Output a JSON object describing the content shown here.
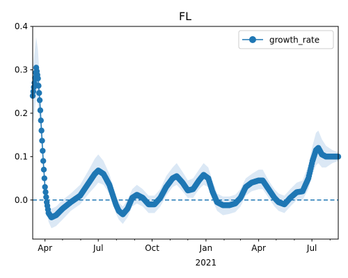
{
  "chart_data": {
    "type": "line",
    "title": "FL",
    "xlabel": "",
    "ylabel": "",
    "x_range": [
      "2020-03-11",
      "2021-08-15"
    ],
    "ylim": [
      -0.09,
      0.4
    ],
    "y_ticks": [
      0.0,
      0.1,
      0.2,
      0.3,
      0.4
    ],
    "y_tick_labels": [
      "0.0",
      "0.1",
      "0.2",
      "0.3",
      "0.4"
    ],
    "x_ticks": [
      {
        "date": "2020-04-01",
        "label": "Apr",
        "sublabel": ""
      },
      {
        "date": "2020-07-01",
        "label": "Jul",
        "sublabel": ""
      },
      {
        "date": "2020-10-01",
        "label": "Oct",
        "sublabel": ""
      },
      {
        "date": "2021-01-01",
        "label": "Jan",
        "sublabel": "2021"
      },
      {
        "date": "2021-04-01",
        "label": "Apr",
        "sublabel": ""
      },
      {
        "date": "2021-07-01",
        "label": "Jul",
        "sublabel": ""
      }
    ],
    "reference_line": {
      "y": 0.0,
      "style": "dashed",
      "color": "#1f77b4"
    },
    "legend": {
      "position": "top-right",
      "entries": [
        "growth_rate"
      ]
    },
    "grid": false,
    "series": [
      {
        "name": "growth_rate",
        "color": "#1f77b4",
        "band_color": "#dbe8f5",
        "marker": "circle",
        "points": [
          {
            "x": "2020-03-11",
            "y": 0.24,
            "lo": 0.17,
            "hi": 0.3
          },
          {
            "x": "2020-03-14",
            "y": 0.27,
            "lo": 0.2,
            "hi": 0.34
          },
          {
            "x": "2020-03-17",
            "y": 0.305,
            "lo": 0.24,
            "hi": 0.375
          },
          {
            "x": "2020-03-20",
            "y": 0.28,
            "lo": 0.22,
            "hi": 0.345
          },
          {
            "x": "2020-03-23",
            "y": 0.23,
            "lo": 0.18,
            "hi": 0.28
          },
          {
            "x": "2020-03-26",
            "y": 0.16,
            "lo": 0.125,
            "hi": 0.195
          },
          {
            "x": "2020-03-29",
            "y": 0.09,
            "lo": 0.07,
            "hi": 0.11
          },
          {
            "x": "2020-04-01",
            "y": 0.03,
            "lo": 0.015,
            "hi": 0.045
          },
          {
            "x": "2020-04-04",
            "y": -0.005,
            "lo": -0.02,
            "hi": 0.01
          },
          {
            "x": "2020-04-07",
            "y": -0.03,
            "lo": -0.05,
            "hi": -0.015
          },
          {
            "x": "2020-04-12",
            "y": -0.04,
            "lo": -0.065,
            "hi": -0.02
          },
          {
            "x": "2020-04-20",
            "y": -0.035,
            "lo": -0.06,
            "hi": -0.015
          },
          {
            "x": "2020-05-01",
            "y": -0.02,
            "lo": -0.045,
            "hi": 0.0
          },
          {
            "x": "2020-05-15",
            "y": -0.005,
            "lo": -0.025,
            "hi": 0.015
          },
          {
            "x": "2020-05-31",
            "y": 0.01,
            "lo": -0.01,
            "hi": 0.035
          },
          {
            "x": "2020-06-15",
            "y": 0.04,
            "lo": 0.015,
            "hi": 0.07
          },
          {
            "x": "2020-06-25",
            "y": 0.06,
            "lo": 0.03,
            "hi": 0.095
          },
          {
            "x": "2020-07-01",
            "y": 0.068,
            "lo": 0.04,
            "hi": 0.105
          },
          {
            "x": "2020-07-10",
            "y": 0.06,
            "lo": 0.035,
            "hi": 0.09
          },
          {
            "x": "2020-07-20",
            "y": 0.035,
            "lo": 0.015,
            "hi": 0.06
          },
          {
            "x": "2020-07-31",
            "y": -0.01,
            "lo": -0.03,
            "hi": 0.01
          },
          {
            "x": "2020-08-05",
            "y": -0.025,
            "lo": -0.045,
            "hi": -0.005
          },
          {
            "x": "2020-08-12",
            "y": -0.033,
            "lo": -0.055,
            "hi": -0.015
          },
          {
            "x": "2020-08-20",
            "y": -0.02,
            "lo": -0.04,
            "hi": 0.0
          },
          {
            "x": "2020-08-28",
            "y": 0.005,
            "lo": -0.015,
            "hi": 0.025
          },
          {
            "x": "2020-09-05",
            "y": 0.012,
            "lo": -0.008,
            "hi": 0.035
          },
          {
            "x": "2020-09-15",
            "y": 0.005,
            "lo": -0.015,
            "hi": 0.025
          },
          {
            "x": "2020-09-25",
            "y": -0.01,
            "lo": -0.03,
            "hi": 0.01
          },
          {
            "x": "2020-10-05",
            "y": -0.01,
            "lo": -0.03,
            "hi": 0.01
          },
          {
            "x": "2020-10-15",
            "y": 0.005,
            "lo": -0.015,
            "hi": 0.025
          },
          {
            "x": "2020-10-25",
            "y": 0.03,
            "lo": 0.01,
            "hi": 0.055
          },
          {
            "x": "2020-11-05",
            "y": 0.05,
            "lo": 0.03,
            "hi": 0.075
          },
          {
            "x": "2020-11-12",
            "y": 0.055,
            "lo": 0.035,
            "hi": 0.085
          },
          {
            "x": "2020-11-22",
            "y": 0.04,
            "lo": 0.02,
            "hi": 0.065
          },
          {
            "x": "2020-12-01",
            "y": 0.022,
            "lo": 0.005,
            "hi": 0.045
          },
          {
            "x": "2020-12-10",
            "y": 0.025,
            "lo": 0.005,
            "hi": 0.05
          },
          {
            "x": "2020-12-20",
            "y": 0.045,
            "lo": 0.025,
            "hi": 0.07
          },
          {
            "x": "2020-12-28",
            "y": 0.058,
            "lo": 0.035,
            "hi": 0.085
          },
          {
            "x": "2021-01-05",
            "y": 0.05,
            "lo": 0.03,
            "hi": 0.075
          },
          {
            "x": "2021-01-12",
            "y": 0.02,
            "lo": 0.0,
            "hi": 0.045
          },
          {
            "x": "2021-01-20",
            "y": -0.005,
            "lo": -0.025,
            "hi": 0.015
          },
          {
            "x": "2021-01-30",
            "y": -0.012,
            "lo": -0.035,
            "hi": 0.008
          },
          {
            "x": "2021-02-10",
            "y": -0.012,
            "lo": -0.032,
            "hi": 0.008
          },
          {
            "x": "2021-02-20",
            "y": -0.008,
            "lo": -0.028,
            "hi": 0.012
          },
          {
            "x": "2021-03-01",
            "y": 0.005,
            "lo": -0.015,
            "hi": 0.025
          },
          {
            "x": "2021-03-10",
            "y": 0.03,
            "lo": 0.01,
            "hi": 0.05
          },
          {
            "x": "2021-03-20",
            "y": 0.04,
            "lo": 0.02,
            "hi": 0.06
          },
          {
            "x": "2021-04-01",
            "y": 0.045,
            "lo": 0.025,
            "hi": 0.07
          },
          {
            "x": "2021-04-08",
            "y": 0.045,
            "lo": 0.025,
            "hi": 0.07
          },
          {
            "x": "2021-04-18",
            "y": 0.025,
            "lo": 0.005,
            "hi": 0.045
          },
          {
            "x": "2021-04-28",
            "y": 0.005,
            "lo": -0.015,
            "hi": 0.025
          },
          {
            "x": "2021-05-05",
            "y": -0.005,
            "lo": -0.025,
            "hi": 0.015
          },
          {
            "x": "2021-05-15",
            "y": -0.01,
            "lo": -0.03,
            "hi": 0.01
          },
          {
            "x": "2021-05-25",
            "y": 0.005,
            "lo": -0.015,
            "hi": 0.025
          },
          {
            "x": "2021-06-05",
            "y": 0.018,
            "lo": 0.0,
            "hi": 0.04
          },
          {
            "x": "2021-06-15",
            "y": 0.02,
            "lo": 0.0,
            "hi": 0.045
          },
          {
            "x": "2021-06-25",
            "y": 0.05,
            "lo": 0.025,
            "hi": 0.08
          },
          {
            "x": "2021-07-02",
            "y": 0.09,
            "lo": 0.06,
            "hi": 0.125
          },
          {
            "x": "2021-07-08",
            "y": 0.115,
            "lo": 0.08,
            "hi": 0.155
          },
          {
            "x": "2021-07-12",
            "y": 0.12,
            "lo": 0.085,
            "hi": 0.16
          },
          {
            "x": "2021-07-18",
            "y": 0.105,
            "lo": 0.075,
            "hi": 0.14
          },
          {
            "x": "2021-07-25",
            "y": 0.1,
            "lo": 0.075,
            "hi": 0.125
          },
          {
            "x": "2021-08-05",
            "y": 0.1,
            "lo": 0.085,
            "hi": 0.115
          },
          {
            "x": "2021-08-15",
            "y": 0.1,
            "lo": 0.09,
            "hi": 0.11
          }
        ]
      }
    ]
  }
}
